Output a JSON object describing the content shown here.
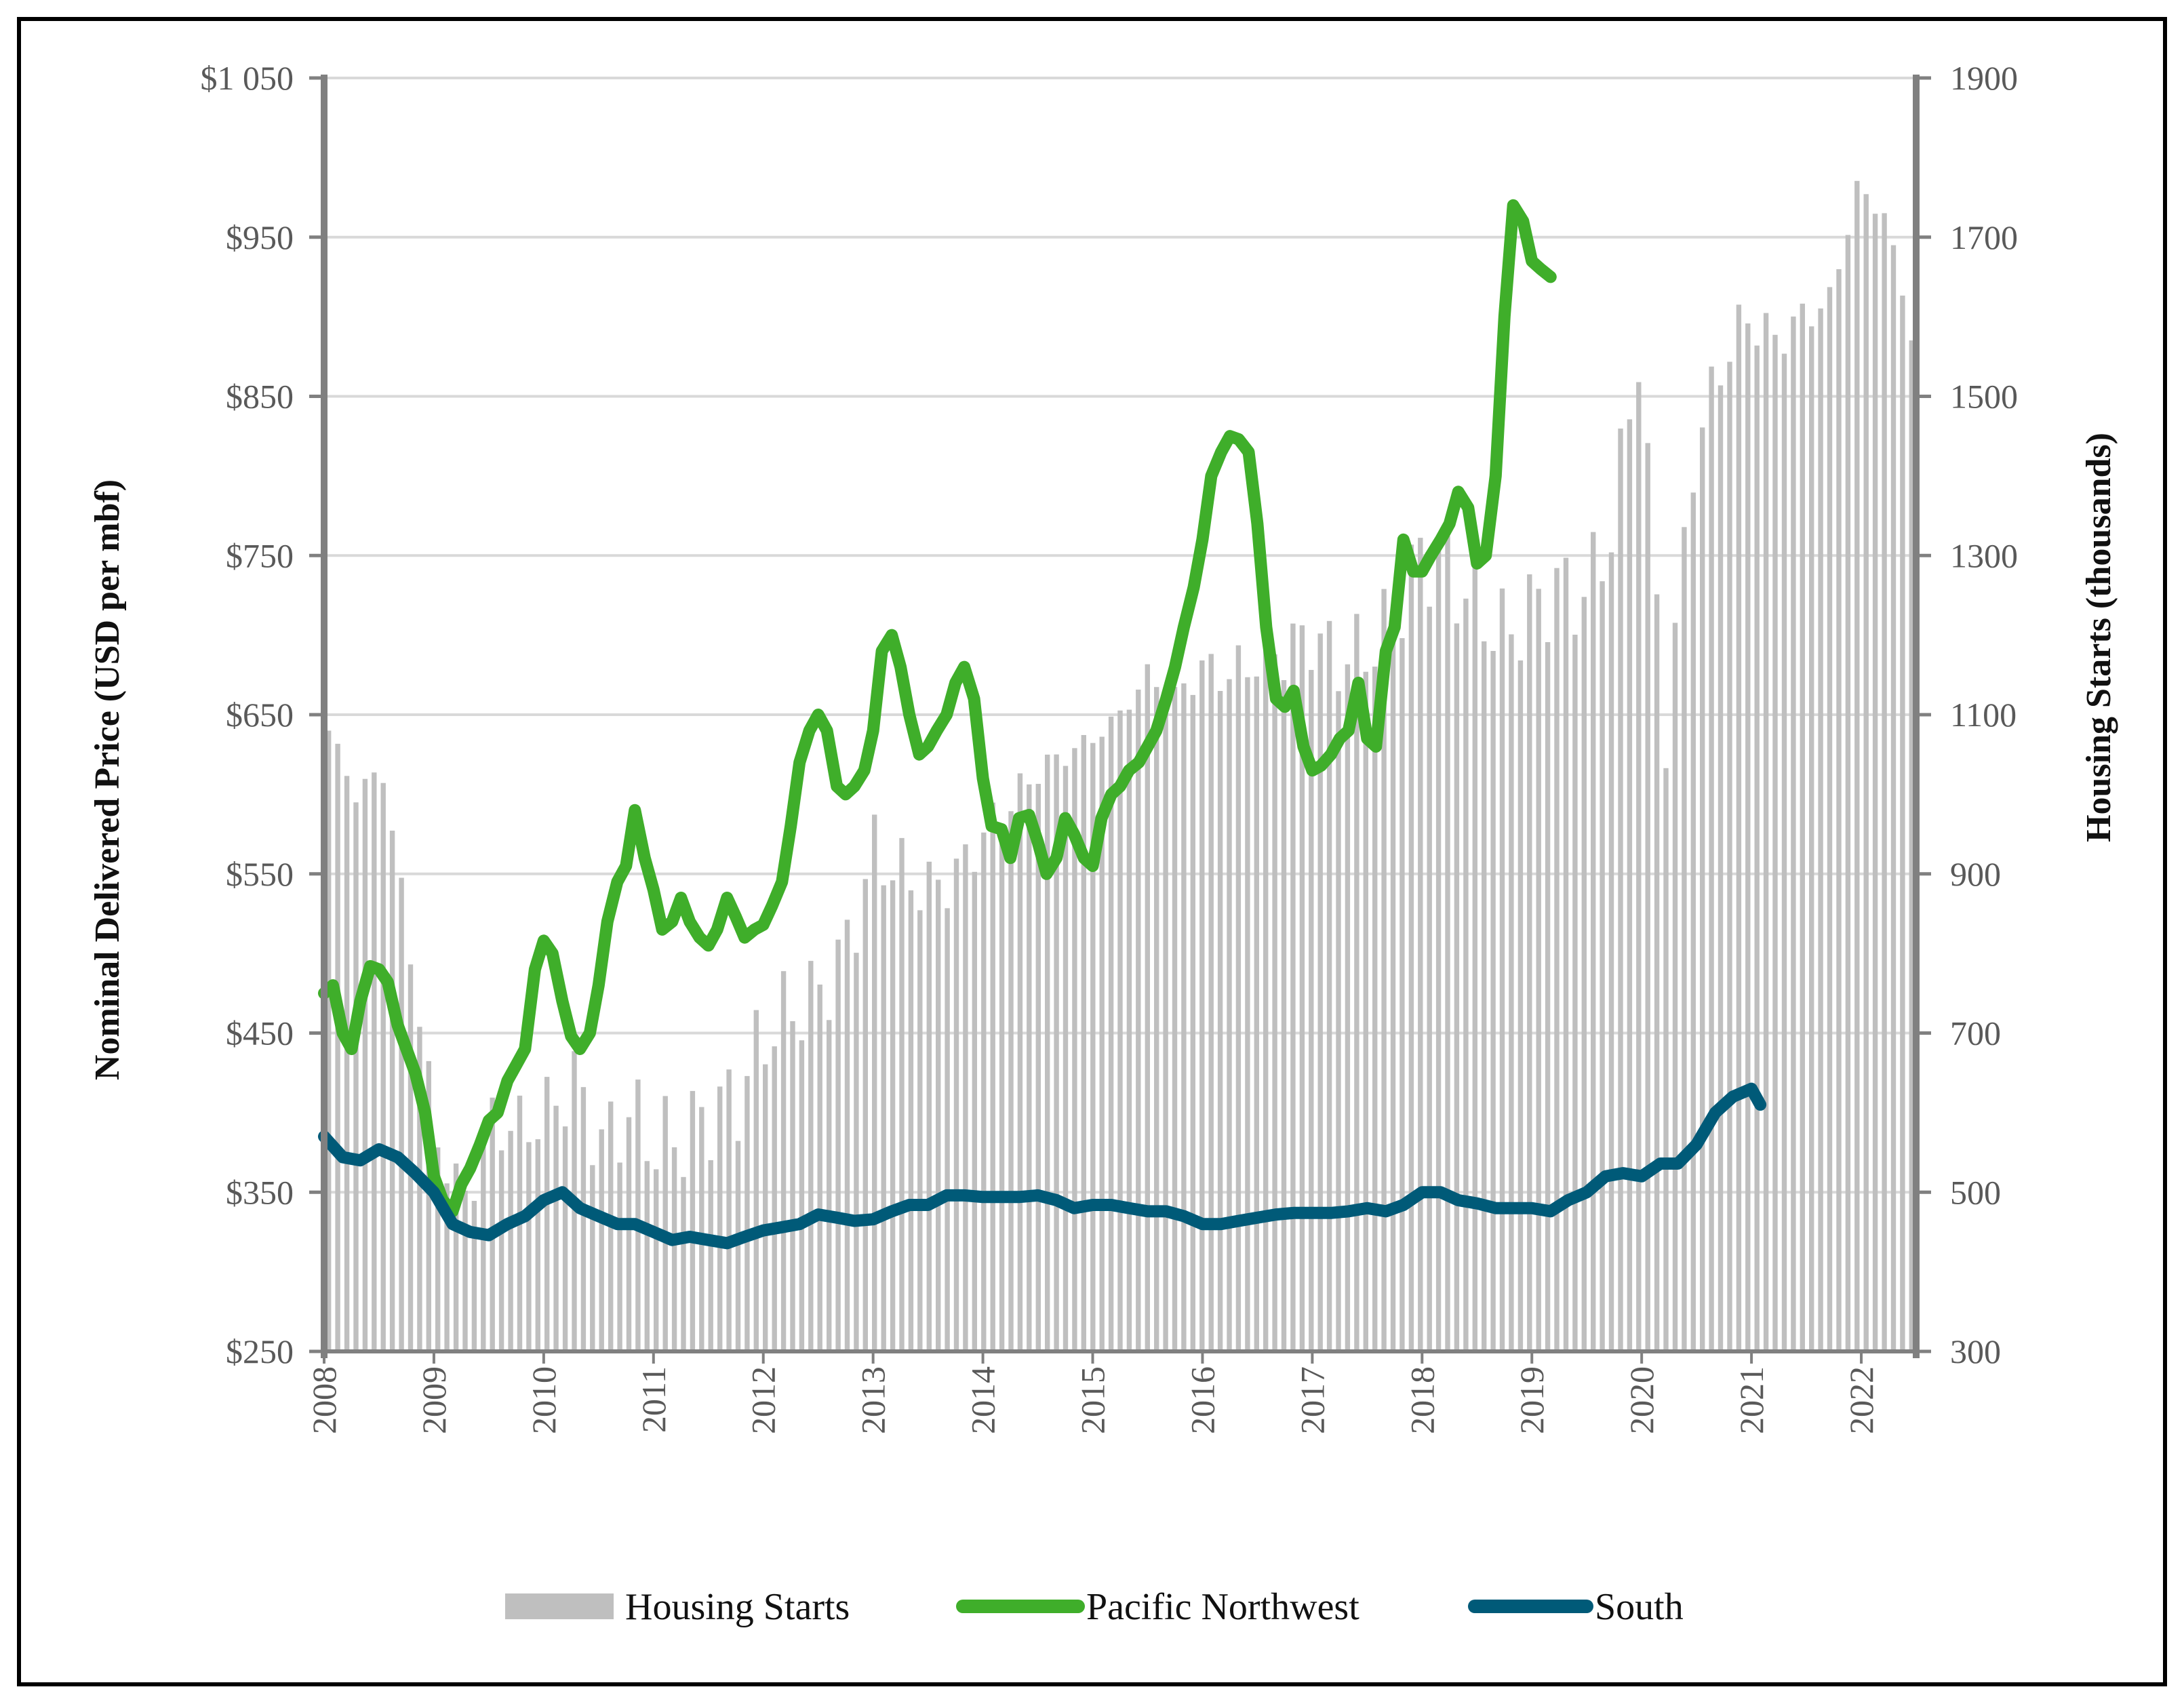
{
  "chart_data": {
    "type": "bar+line",
    "title": "",
    "xlabel": "",
    "ylabel_left": "Nominal Delivered Price (USD per mbf)",
    "ylabel_right": "Housing Starts (thousands)",
    "y_left_lim": [
      250,
      1050
    ],
    "y_left_ticks": [
      "$250",
      "$350",
      "$450",
      "$550",
      "$650",
      "$750",
      "$850",
      "$950",
      "$1 050"
    ],
    "y_left_tick_values": [
      250,
      350,
      450,
      550,
      650,
      750,
      850,
      950,
      1050
    ],
    "y_right_lim": [
      300,
      1900
    ],
    "y_right_ticks": [
      "300",
      "500",
      "700",
      "900",
      "1100",
      "1300",
      "1500",
      "1700",
      "1900"
    ],
    "y_right_tick_values": [
      300,
      500,
      700,
      900,
      1100,
      1300,
      1500,
      1700,
      1900
    ],
    "x_range": [
      2008.0,
      2022.5
    ],
    "x_ticks": [
      "2008",
      "2009",
      "2010",
      "2011",
      "2012",
      "2013",
      "2014",
      "2015",
      "2016",
      "2017",
      "2018",
      "2019",
      "2020",
      "2021",
      "2022"
    ],
    "legend": [
      "Housing Starts",
      "Pacific Northwest",
      "South"
    ],
    "colors": {
      "housing": "#bfbfbf",
      "pnw": "#3fae2a",
      "south": "#005a78",
      "axis": "#808080",
      "grid": "#d9d9d9"
    },
    "housing_starts_anchors": [
      [
        2008.0,
        1080
      ],
      [
        2008.25,
        1000
      ],
      [
        2008.5,
        1030
      ],
      [
        2008.75,
        800
      ],
      [
        2009.0,
        560
      ],
      [
        2009.25,
        490
      ],
      [
        2009.5,
        590
      ],
      [
        2009.75,
        580
      ],
      [
        2010.0,
        600
      ],
      [
        2010.25,
        640
      ],
      [
        2010.5,
        560
      ],
      [
        2010.75,
        600
      ],
      [
        2011.0,
        560
      ],
      [
        2011.25,
        570
      ],
      [
        2011.5,
        600
      ],
      [
        2011.75,
        620
      ],
      [
        2012.0,
        700
      ],
      [
        2012.25,
        730
      ],
      [
        2012.5,
        750
      ],
      [
        2012.75,
        810
      ],
      [
        2013.0,
        930
      ],
      [
        2013.25,
        900
      ],
      [
        2013.5,
        880
      ],
      [
        2013.75,
        900
      ],
      [
        2014.0,
        950
      ],
      [
        2014.25,
        990
      ],
      [
        2014.5,
        1030
      ],
      [
        2014.75,
        1050
      ],
      [
        2015.0,
        1070
      ],
      [
        2015.25,
        1100
      ],
      [
        2015.5,
        1150
      ],
      [
        2015.75,
        1120
      ],
      [
        2016.0,
        1160
      ],
      [
        2016.25,
        1150
      ],
      [
        2016.5,
        1170
      ],
      [
        2016.75,
        1180
      ],
      [
        2017.0,
        1200
      ],
      [
        2017.25,
        1170
      ],
      [
        2017.5,
        1180
      ],
      [
        2017.75,
        1220
      ],
      [
        2018.0,
        1300
      ],
      [
        2018.25,
        1280
      ],
      [
        2018.5,
        1240
      ],
      [
        2018.75,
        1200
      ],
      [
        2019.0,
        1230
      ],
      [
        2019.25,
        1260
      ],
      [
        2019.5,
        1250
      ],
      [
        2019.75,
        1330
      ],
      [
        2020.0,
        1560
      ],
      [
        2020.25,
        1080
      ],
      [
        2020.5,
        1420
      ],
      [
        2020.75,
        1540
      ],
      [
        2021.0,
        1600
      ],
      [
        2021.25,
        1570
      ],
      [
        2021.5,
        1600
      ],
      [
        2021.75,
        1620
      ],
      [
        2022.0,
        1760
      ],
      [
        2022.25,
        1730
      ],
      [
        2022.5,
        1580
      ]
    ],
    "series": [
      {
        "name": "Pacific Northwest",
        "points": [
          [
            2008.0,
            475
          ],
          [
            2008.08,
            480
          ],
          [
            2008.17,
            450
          ],
          [
            2008.25,
            440
          ],
          [
            2008.33,
            470
          ],
          [
            2008.42,
            492
          ],
          [
            2008.5,
            490
          ],
          [
            2008.58,
            482
          ],
          [
            2008.67,
            455
          ],
          [
            2008.75,
            440
          ],
          [
            2008.83,
            425
          ],
          [
            2008.92,
            400
          ],
          [
            2009.0,
            360
          ],
          [
            2009.08,
            345
          ],
          [
            2009.17,
            338
          ],
          [
            2009.25,
            355
          ],
          [
            2009.33,
            365
          ],
          [
            2009.42,
            380
          ],
          [
            2009.5,
            395
          ],
          [
            2009.58,
            400
          ],
          [
            2009.67,
            420
          ],
          [
            2009.75,
            430
          ],
          [
            2009.83,
            440
          ],
          [
            2009.92,
            490
          ],
          [
            2010.0,
            508
          ],
          [
            2010.08,
            500
          ],
          [
            2010.17,
            470
          ],
          [
            2010.25,
            448
          ],
          [
            2010.33,
            440
          ],
          [
            2010.42,
            450
          ],
          [
            2010.5,
            480
          ],
          [
            2010.58,
            520
          ],
          [
            2010.67,
            545
          ],
          [
            2010.75,
            555
          ],
          [
            2010.83,
            590
          ],
          [
            2010.92,
            560
          ],
          [
            2011.0,
            540
          ],
          [
            2011.08,
            515
          ],
          [
            2011.17,
            520
          ],
          [
            2011.25,
            535
          ],
          [
            2011.33,
            520
          ],
          [
            2011.42,
            510
          ],
          [
            2011.5,
            505
          ],
          [
            2011.58,
            515
          ],
          [
            2011.67,
            535
          ],
          [
            2011.75,
            523
          ],
          [
            2011.83,
            510
          ],
          [
            2011.92,
            515
          ],
          [
            2012.0,
            518
          ],
          [
            2012.08,
            530
          ],
          [
            2012.17,
            545
          ],
          [
            2012.25,
            580
          ],
          [
            2012.33,
            620
          ],
          [
            2012.42,
            640
          ],
          [
            2012.5,
            650
          ],
          [
            2012.58,
            640
          ],
          [
            2012.67,
            605
          ],
          [
            2012.75,
            600
          ],
          [
            2012.83,
            605
          ],
          [
            2012.92,
            615
          ],
          [
            2013.0,
            640
          ],
          [
            2013.08,
            690
          ],
          [
            2013.17,
            700
          ],
          [
            2013.25,
            680
          ],
          [
            2013.33,
            650
          ],
          [
            2013.42,
            625
          ],
          [
            2013.5,
            630
          ],
          [
            2013.58,
            640
          ],
          [
            2013.67,
            650
          ],
          [
            2013.75,
            670
          ],
          [
            2013.83,
            680
          ],
          [
            2013.92,
            660
          ],
          [
            2014.0,
            610
          ],
          [
            2014.08,
            580
          ],
          [
            2014.17,
            578
          ],
          [
            2014.25,
            560
          ],
          [
            2014.33,
            585
          ],
          [
            2014.42,
            587
          ],
          [
            2014.5,
            570
          ],
          [
            2014.58,
            550
          ],
          [
            2014.67,
            560
          ],
          [
            2014.75,
            585
          ],
          [
            2014.83,
            575
          ],
          [
            2014.92,
            560
          ],
          [
            2015.0,
            555
          ],
          [
            2015.08,
            585
          ],
          [
            2015.17,
            600
          ],
          [
            2015.25,
            605
          ],
          [
            2015.33,
            615
          ],
          [
            2015.42,
            620
          ],
          [
            2015.5,
            630
          ],
          [
            2015.58,
            640
          ],
          [
            2015.67,
            660
          ],
          [
            2015.75,
            680
          ],
          [
            2015.83,
            705
          ],
          [
            2015.92,
            730
          ],
          [
            2016.0,
            760
          ],
          [
            2016.08,
            800
          ],
          [
            2016.17,
            815
          ],
          [
            2016.25,
            825
          ],
          [
            2016.33,
            823
          ],
          [
            2016.42,
            815
          ],
          [
            2016.5,
            770
          ],
          [
            2016.58,
            705
          ],
          [
            2016.67,
            660
          ],
          [
            2016.75,
            655
          ],
          [
            2016.83,
            665
          ],
          [
            2016.92,
            630
          ],
          [
            2017.0,
            615
          ],
          [
            2017.08,
            618
          ],
          [
            2017.17,
            625
          ],
          [
            2017.25,
            635
          ],
          [
            2017.33,
            640
          ],
          [
            2017.42,
            670
          ],
          [
            2017.5,
            635
          ],
          [
            2017.58,
            630
          ],
          [
            2017.67,
            690
          ],
          [
            2017.75,
            705
          ],
          [
            2017.83,
            760
          ],
          [
            2017.92,
            740
          ],
          [
            2018.0,
            740
          ],
          [
            2018.08,
            750
          ],
          [
            2018.17,
            760
          ],
          [
            2018.25,
            770
          ],
          [
            2018.33,
            790
          ],
          [
            2018.42,
            780
          ],
          [
            2018.5,
            745
          ],
          [
            2018.58,
            750
          ],
          [
            2018.67,
            800
          ],
          [
            2018.75,
            900
          ],
          [
            2018.83,
            970
          ],
          [
            2018.92,
            960
          ],
          [
            2019.0,
            935
          ],
          [
            2019.08,
            930
          ],
          [
            2019.17,
            925
          ]
        ]
      },
      {
        "name": "South",
        "points": [
          [
            2008.0,
            385
          ],
          [
            2008.17,
            372
          ],
          [
            2008.33,
            370
          ],
          [
            2008.5,
            377
          ],
          [
            2008.67,
            372
          ],
          [
            2008.83,
            362
          ],
          [
            2009.0,
            350
          ],
          [
            2009.17,
            330
          ],
          [
            2009.33,
            325
          ],
          [
            2009.5,
            323
          ],
          [
            2009.67,
            330
          ],
          [
            2009.83,
            335
          ],
          [
            2010.0,
            345
          ],
          [
            2010.17,
            350
          ],
          [
            2010.33,
            340
          ],
          [
            2010.5,
            335
          ],
          [
            2010.67,
            330
          ],
          [
            2010.83,
            330
          ],
          [
            2011.0,
            325
          ],
          [
            2011.17,
            320
          ],
          [
            2011.33,
            322
          ],
          [
            2011.5,
            320
          ],
          [
            2011.67,
            318
          ],
          [
            2011.83,
            322
          ],
          [
            2012.0,
            326
          ],
          [
            2012.17,
            328
          ],
          [
            2012.33,
            330
          ],
          [
            2012.5,
            336
          ],
          [
            2012.67,
            334
          ],
          [
            2012.83,
            332
          ],
          [
            2013.0,
            333
          ],
          [
            2013.17,
            338
          ],
          [
            2013.33,
            342
          ],
          [
            2013.5,
            342
          ],
          [
            2013.67,
            348
          ],
          [
            2013.83,
            348
          ],
          [
            2014.0,
            347
          ],
          [
            2014.17,
            347
          ],
          [
            2014.33,
            347
          ],
          [
            2014.5,
            348
          ],
          [
            2014.67,
            345
          ],
          [
            2014.83,
            340
          ],
          [
            2015.0,
            342
          ],
          [
            2015.17,
            342
          ],
          [
            2015.33,
            340
          ],
          [
            2015.5,
            338
          ],
          [
            2015.67,
            338
          ],
          [
            2015.83,
            335
          ],
          [
            2016.0,
            330
          ],
          [
            2016.17,
            330
          ],
          [
            2016.33,
            332
          ],
          [
            2016.5,
            334
          ],
          [
            2016.67,
            336
          ],
          [
            2016.83,
            337
          ],
          [
            2017.0,
            337
          ],
          [
            2017.17,
            337
          ],
          [
            2017.33,
            338
          ],
          [
            2017.5,
            340
          ],
          [
            2017.67,
            338
          ],
          [
            2017.83,
            342
          ],
          [
            2018.0,
            350
          ],
          [
            2018.17,
            350
          ],
          [
            2018.33,
            345
          ],
          [
            2018.5,
            343
          ],
          [
            2018.67,
            340
          ],
          [
            2018.83,
            340
          ],
          [
            2019.0,
            340
          ],
          [
            2019.17,
            338
          ],
          [
            2019.33,
            345
          ],
          [
            2019.5,
            350
          ],
          [
            2019.67,
            360
          ],
          [
            2019.83,
            362
          ],
          [
            2020.0,
            360
          ],
          [
            2020.17,
            368
          ],
          [
            2020.33,
            368
          ],
          [
            2020.5,
            380
          ],
          [
            2020.67,
            400
          ],
          [
            2020.83,
            410
          ],
          [
            2021.0,
            415
          ],
          [
            2021.08,
            405
          ]
        ]
      }
    ]
  }
}
